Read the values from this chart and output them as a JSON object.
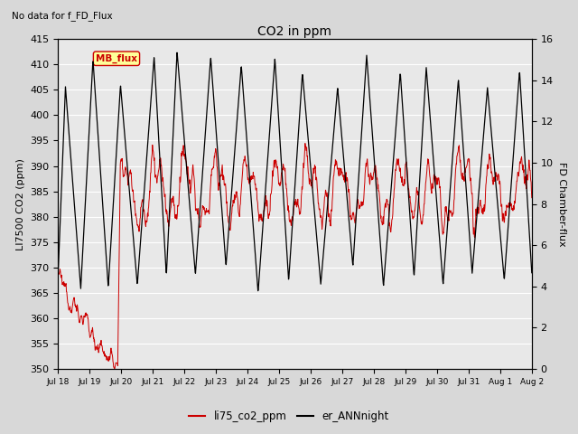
{
  "title": "CO2 in ppm",
  "subtitle": "No data for f_FD_Flux",
  "ylabel_left": "LI7500 CO2 (ppm)",
  "ylabel_right": "FD Chamber-flux",
  "ylim_left": [
    350,
    415
  ],
  "ylim_right": [
    0,
    16
  ],
  "yticks_left": [
    350,
    355,
    360,
    365,
    370,
    375,
    380,
    385,
    390,
    395,
    400,
    405,
    410,
    415
  ],
  "yticks_right": [
    0,
    2,
    4,
    6,
    8,
    10,
    12,
    14,
    16
  ],
  "xlabel_ticks": [
    "Jul 18",
    "Jul 19",
    "Jul 20",
    "Jul 21",
    "Jul 22",
    "Jul 23",
    "Jul 24",
    "Jul 25",
    "Jul 26",
    "Jul 27",
    "Jul 28",
    "Jul 29",
    "Jul 30",
    "Jul 31",
    "Aug 1",
    "Aug 2"
  ],
  "bg_color": "#d8d8d8",
  "plot_bg_color": "#e8e8e8",
  "line_red_color": "#cc0000",
  "line_black_color": "#000000",
  "legend_entries": [
    "li75_co2_ppm",
    "er_ANNnight"
  ],
  "legend_colors": [
    "#cc0000",
    "#000000"
  ],
  "mb_flux_box_color": "#ffff99",
  "mb_flux_text_color": "#cc0000",
  "mb_flux_border_color": "#cc0000",
  "grid_color": "#ffffff",
  "title_fontsize": 10,
  "label_fontsize": 8,
  "tick_fontsize": 8
}
